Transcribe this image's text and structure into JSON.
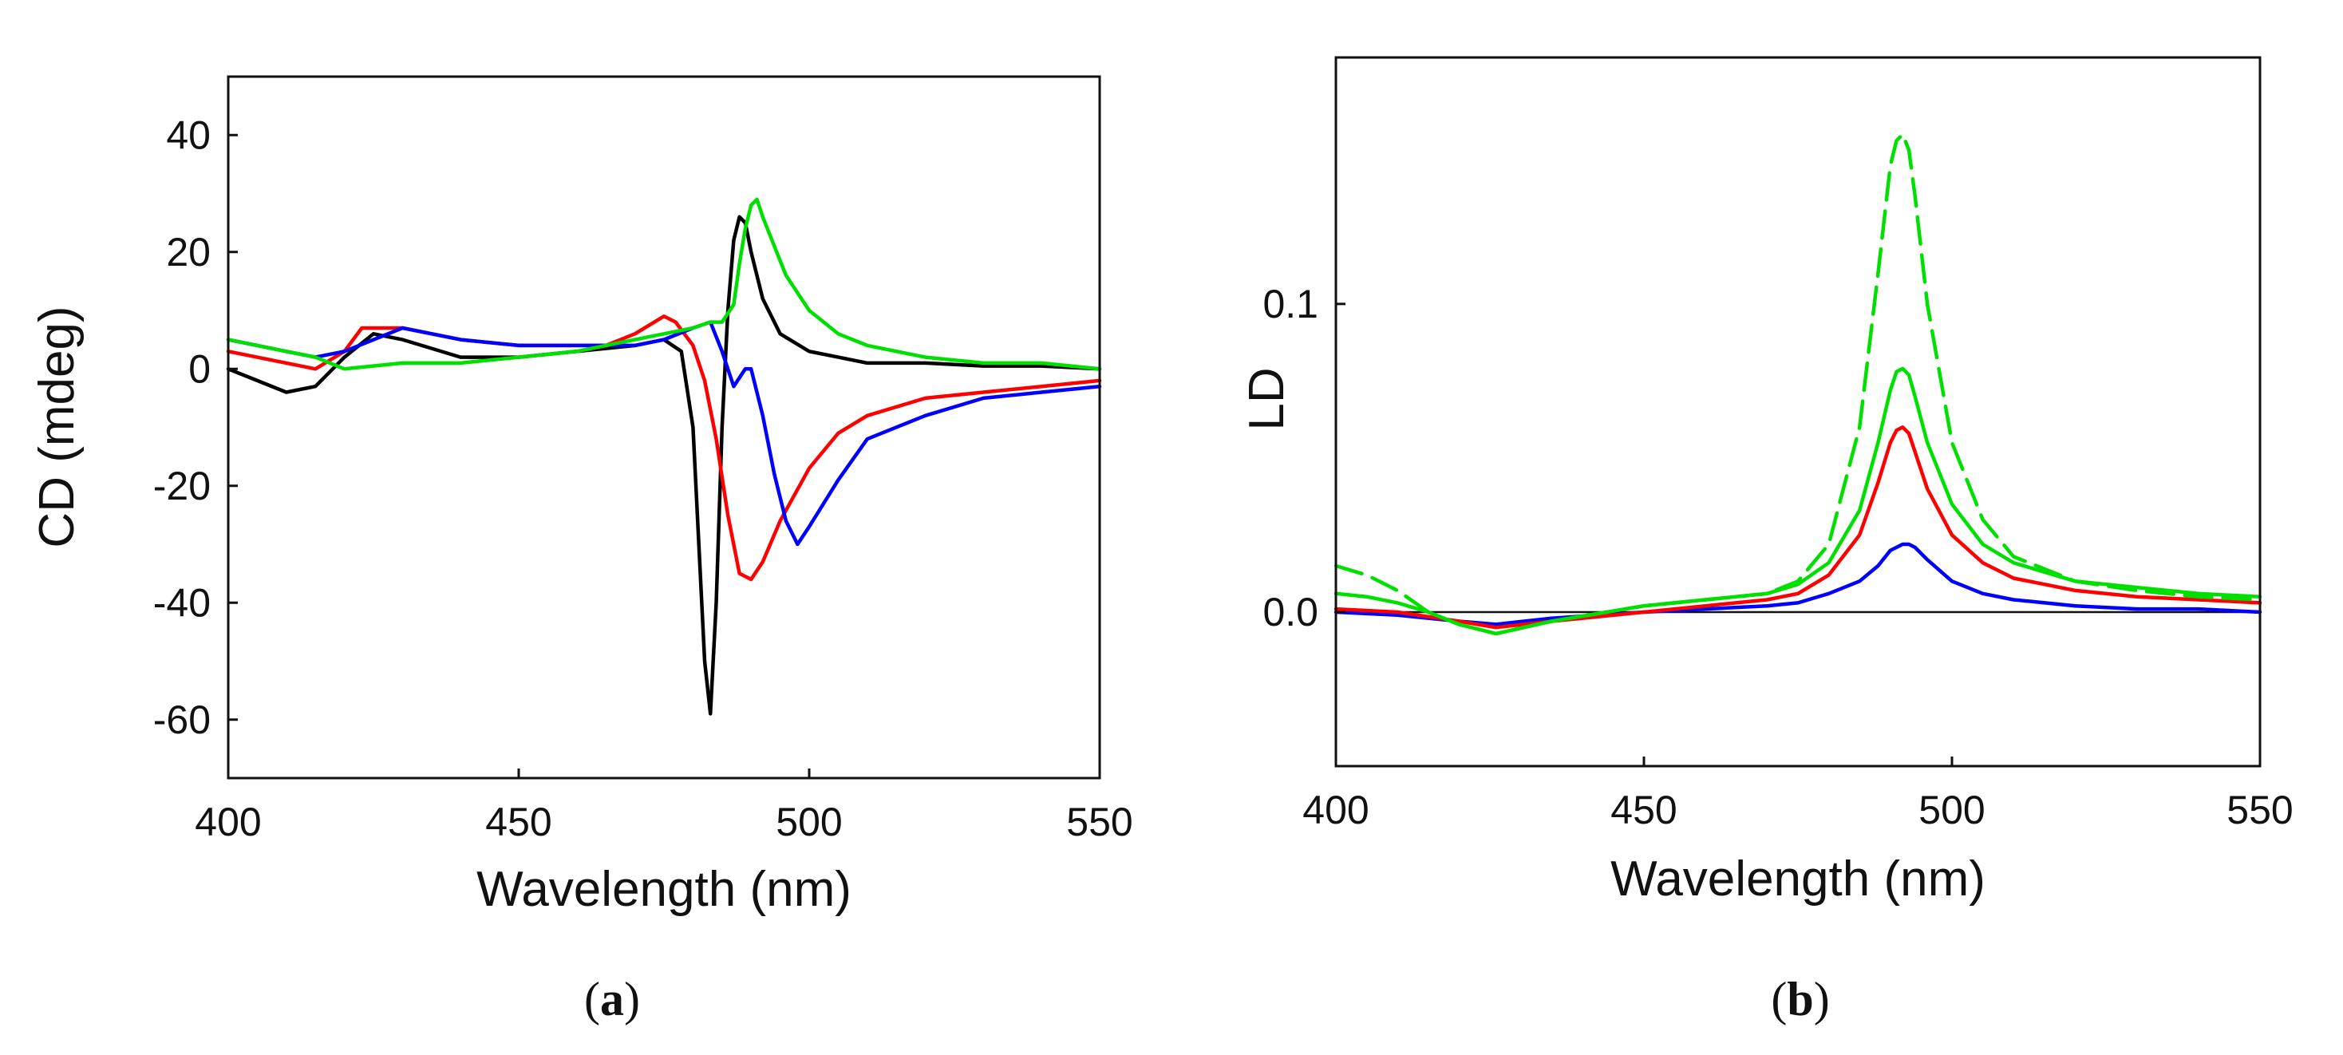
{
  "chart_data": [
    {
      "type": "line",
      "panel_label": "a",
      "title": "",
      "xlabel": "Wavelength (nm)",
      "ylabel": "CD (mdeg)",
      "xlim": [
        400,
        550
      ],
      "ylim": [
        -70,
        50
      ],
      "xticks": [
        400,
        450,
        500,
        550
      ],
      "yticks": [
        -60,
        -40,
        -20,
        0,
        20,
        40
      ],
      "grid": false,
      "series": [
        {
          "name": "black",
          "color": "#000000",
          "dash": "solid",
          "x": [
            400,
            405,
            410,
            415,
            420,
            425,
            430,
            440,
            450,
            460,
            470,
            475,
            478,
            480,
            481,
            482,
            483,
            484,
            485,
            486,
            487,
            488,
            489,
            490,
            492,
            495,
            500,
            505,
            510,
            520,
            530,
            540,
            550
          ],
          "y": [
            0,
            -2,
            -4,
            -3,
            2,
            6,
            5,
            2,
            2,
            3,
            4,
            5,
            3,
            -10,
            -30,
            -50,
            -59,
            -40,
            -10,
            10,
            22,
            26,
            25,
            20,
            12,
            6,
            3,
            2,
            1,
            1,
            0.5,
            0.5,
            0
          ]
        },
        {
          "name": "red",
          "color": "#ff0000",
          "dash": "solid",
          "x": [
            400,
            410,
            415,
            420,
            423,
            430,
            440,
            450,
            460,
            465,
            470,
            475,
            477,
            480,
            482,
            484,
            486,
            488,
            490,
            492,
            495,
            500,
            505,
            510,
            520,
            530,
            540,
            550
          ],
          "y": [
            3,
            1,
            0,
            3,
            7,
            7,
            5,
            4,
            4,
            4,
            6,
            9,
            8,
            4,
            -2,
            -12,
            -25,
            -35,
            -36,
            -33,
            -26,
            -17,
            -11,
            -8,
            -5,
            -4,
            -3,
            -2
          ]
        },
        {
          "name": "blue",
          "color": "#0000ff",
          "dash": "solid",
          "x": [
            400,
            410,
            415,
            420,
            430,
            440,
            450,
            460,
            470,
            475,
            480,
            483,
            485,
            487,
            489,
            490,
            492,
            494,
            496,
            498,
            500,
            505,
            510,
            520,
            530,
            540,
            550
          ],
          "y": [
            5,
            3,
            2,
            3,
            7,
            5,
            4,
            4,
            4,
            5,
            7,
            8,
            3,
            -3,
            0,
            0,
            -8,
            -18,
            -26,
            -30,
            -27,
            -19,
            -12,
            -8,
            -5,
            -4,
            -3
          ]
        },
        {
          "name": "green",
          "color": "#00e000",
          "dash": "solid",
          "x": [
            400,
            405,
            410,
            415,
            420,
            430,
            440,
            450,
            460,
            470,
            475,
            480,
            483,
            485,
            487,
            488,
            489,
            490,
            491,
            492,
            494,
            496,
            500,
            505,
            510,
            520,
            530,
            540,
            550
          ],
          "y": [
            5,
            4,
            3,
            2,
            0,
            1,
            1,
            2,
            3,
            5,
            6,
            7,
            8,
            8,
            11,
            18,
            24,
            28,
            29,
            26,
            21,
            16,
            10,
            6,
            4,
            2,
            1,
            1,
            0
          ]
        }
      ]
    },
    {
      "type": "line",
      "panel_label": "b",
      "title": "",
      "xlabel": "Wavelength (nm)",
      "ylabel": "LD",
      "xlim": [
        400,
        550
      ],
      "ylim": [
        -0.05,
        0.18
      ],
      "xticks": [
        400,
        450,
        500,
        550
      ],
      "yticks": [
        0.0,
        0.1
      ],
      "ytick_labels": [
        "0.0",
        "0.1"
      ],
      "grid": false,
      "series": [
        {
          "name": "blue",
          "color": "#0000ff",
          "dash": "solid",
          "x": [
            400,
            410,
            420,
            426,
            435,
            450,
            460,
            470,
            475,
            480,
            485,
            488,
            490,
            492,
            493,
            494,
            496,
            500,
            505,
            510,
            520,
            530,
            540,
            550
          ],
          "y": [
            0.0,
            -0.001,
            -0.003,
            -0.004,
            -0.002,
            0.0,
            0.001,
            0.002,
            0.003,
            0.006,
            0.01,
            0.015,
            0.02,
            0.022,
            0.022,
            0.021,
            0.017,
            0.01,
            0.006,
            0.004,
            0.002,
            0.001,
            0.001,
            0.0
          ]
        },
        {
          "name": "red",
          "color": "#ff0000",
          "dash": "solid",
          "x": [
            400,
            410,
            420,
            426,
            435,
            450,
            460,
            470,
            475,
            480,
            485,
            488,
            490,
            491,
            492,
            493,
            494,
            496,
            500,
            505,
            510,
            520,
            530,
            540,
            550
          ],
          "y": [
            0.001,
            0.0,
            -0.003,
            -0.005,
            -0.003,
            0.0,
            0.002,
            0.004,
            0.006,
            0.012,
            0.025,
            0.042,
            0.055,
            0.059,
            0.06,
            0.058,
            0.052,
            0.04,
            0.025,
            0.016,
            0.011,
            0.007,
            0.005,
            0.004,
            0.003
          ]
        },
        {
          "name": "green",
          "color": "#00e000",
          "dash": "solid",
          "x": [
            400,
            405,
            410,
            415,
            420,
            426,
            435,
            450,
            460,
            470,
            475,
            480,
            485,
            488,
            490,
            491,
            492,
            493,
            494,
            496,
            500,
            505,
            510,
            520,
            530,
            540,
            550
          ],
          "y": [
            0.006,
            0.005,
            0.003,
            0.0,
            -0.004,
            -0.007,
            -0.003,
            0.002,
            0.004,
            0.006,
            0.009,
            0.016,
            0.033,
            0.055,
            0.072,
            0.078,
            0.079,
            0.077,
            0.07,
            0.055,
            0.035,
            0.022,
            0.016,
            0.01,
            0.008,
            0.006,
            0.005
          ]
        },
        {
          "name": "green (dashed)",
          "color": "#00e000",
          "dash": "dashed",
          "x": [
            400,
            405,
            410,
            415,
            420,
            426,
            435,
            450,
            460,
            470,
            475,
            480,
            485,
            488,
            490,
            491,
            492,
            493,
            494,
            496,
            500,
            505,
            510,
            520,
            530,
            540,
            550
          ],
          "y": [
            0.015,
            0.012,
            0.007,
            0.0,
            -0.004,
            -0.007,
            -0.003,
            0.002,
            0.004,
            0.006,
            0.01,
            0.022,
            0.06,
            0.11,
            0.145,
            0.153,
            0.155,
            0.15,
            0.135,
            0.1,
            0.055,
            0.03,
            0.018,
            0.01,
            0.007,
            0.005,
            0.004
          ]
        }
      ]
    }
  ]
}
